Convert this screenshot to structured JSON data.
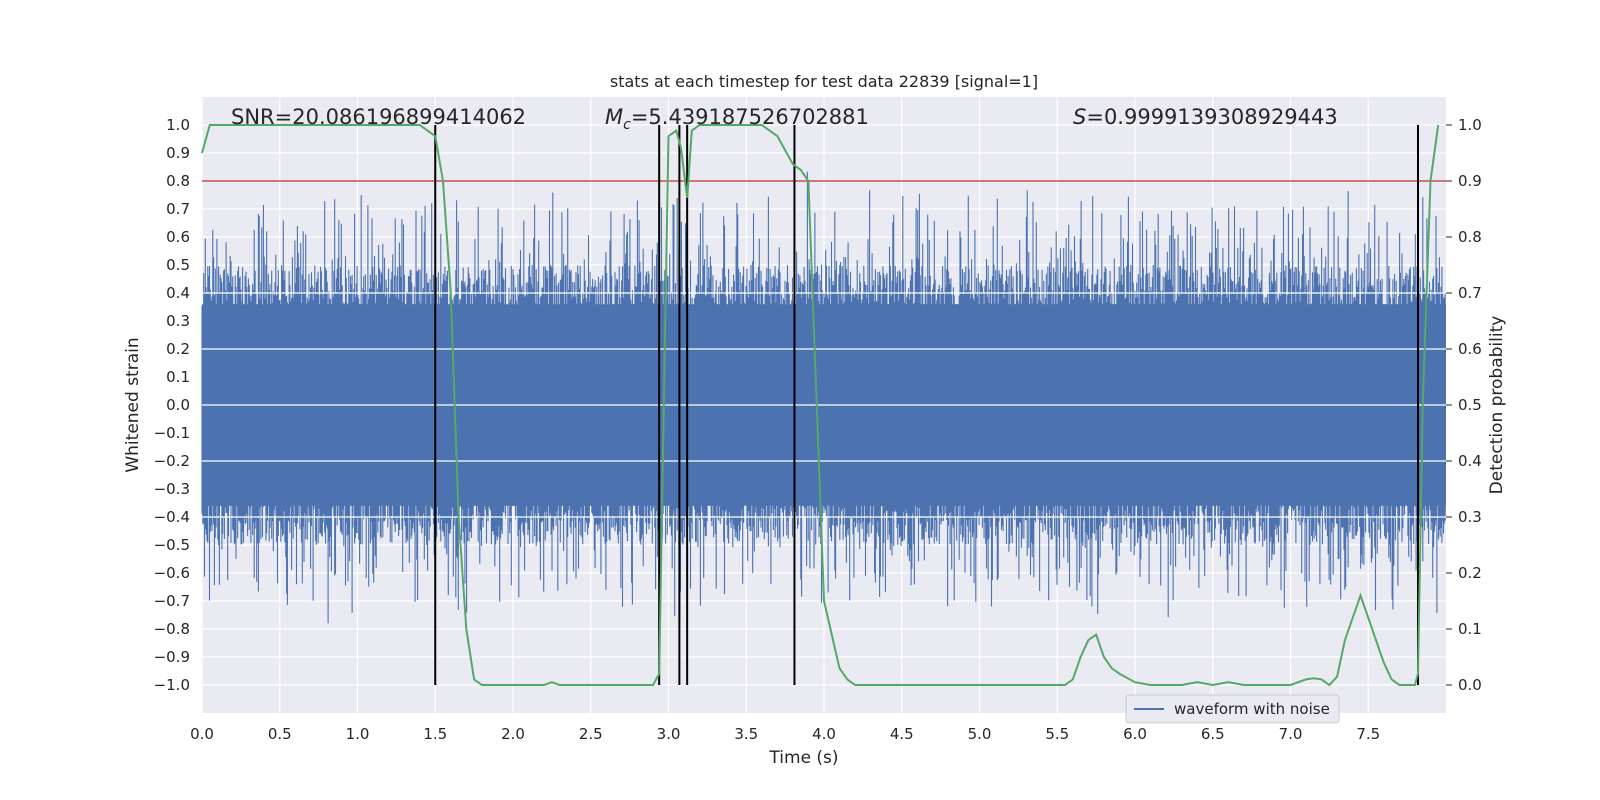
{
  "chart_data": {
    "type": "line",
    "title": "stats at each timestep for test data 22839 [signal=1]",
    "xlabel": "Time (s)",
    "ylabel_left": "Whitened strain",
    "ylabel_right": "Detection probability",
    "xlim": [
      0.0,
      8.0
    ],
    "ylim_left": [
      -1.1,
      1.1
    ],
    "ylim_right": [
      -0.05,
      1.05
    ],
    "x_ticks": [
      "0.0",
      "0.5",
      "1.0",
      "1.5",
      "2.0",
      "2.5",
      "3.0",
      "3.5",
      "4.0",
      "4.5",
      "5.0",
      "5.5",
      "6.0",
      "6.5",
      "7.0",
      "7.5"
    ],
    "y_left_ticks": [
      "1.0",
      "0.9",
      "0.8",
      "0.7",
      "0.6",
      "0.5",
      "0.4",
      "0.3",
      "0.2",
      "0.1",
      "0.0",
      "−0.1",
      "−0.2",
      "−0.3",
      "−0.4",
      "−0.5",
      "−0.6",
      "−0.7",
      "−0.8",
      "−0.9",
      "−1.0"
    ],
    "y_right_ticks": [
      "1.0",
      "0.9",
      "0.8",
      "0.7",
      "0.6",
      "0.5",
      "0.4",
      "0.3",
      "0.2",
      "0.1",
      "0.0"
    ],
    "annotations": {
      "snr": "SNR=20.086196899414062",
      "mc_symbol": "M",
      "mc_subscript": "c",
      "mc_value": "=5.439187526702881",
      "s_symbol": "S",
      "s_value": "=0.9999139308929443"
    },
    "threshold_right": 0.9,
    "threshold_color": "#c44e52",
    "vertical_lines_x": [
      1.5,
      2.94,
      3.07,
      3.12,
      3.81,
      7.82
    ],
    "series": [
      {
        "name": "waveform with noise",
        "axis": "left",
        "color": "#4c72b0",
        "envelope": "band approximately ±0.4 with spikes up to ±1.0"
      },
      {
        "name": "detection probability",
        "axis": "right",
        "color": "#55a868",
        "x": [
          0.0,
          0.05,
          0.1,
          0.2,
          0.3,
          0.4,
          0.5,
          0.6,
          0.7,
          0.8,
          0.9,
          1.0,
          1.1,
          1.2,
          1.3,
          1.4,
          1.45,
          1.5,
          1.55,
          1.6,
          1.65,
          1.7,
          1.75,
          1.8,
          1.9,
          2.0,
          2.1,
          2.2,
          2.25,
          2.3,
          2.4,
          2.5,
          2.6,
          2.7,
          2.8,
          2.9,
          2.94,
          2.97,
          3.0,
          3.05,
          3.08,
          3.12,
          3.15,
          3.2,
          3.3,
          3.4,
          3.5,
          3.6,
          3.7,
          3.8,
          3.85,
          3.9,
          4.0,
          4.1,
          4.15,
          4.2,
          4.3,
          4.4,
          4.5,
          4.6,
          4.7,
          4.8,
          5.0,
          5.2,
          5.4,
          5.5,
          5.55,
          5.6,
          5.65,
          5.7,
          5.75,
          5.8,
          5.85,
          5.9,
          6.0,
          6.1,
          6.2,
          6.3,
          6.4,
          6.5,
          6.6,
          6.7,
          6.8,
          6.9,
          7.0,
          7.1,
          7.15,
          7.2,
          7.25,
          7.3,
          7.35,
          7.4,
          7.45,
          7.5,
          7.55,
          7.6,
          7.65,
          7.7,
          7.75,
          7.8,
          7.82,
          7.85,
          7.9,
          7.95
        ],
        "values": [
          0.95,
          1.0,
          1.0,
          1.0,
          1.0,
          1.0,
          1.0,
          1.0,
          1.0,
          1.0,
          1.0,
          1.0,
          1.0,
          1.0,
          1.0,
          1.0,
          0.99,
          0.98,
          0.9,
          0.7,
          0.3,
          0.1,
          0.01,
          0.0,
          0.0,
          0.0,
          0.0,
          0.0,
          0.005,
          0.0,
          0.0,
          0.0,
          0.0,
          0.0,
          0.0,
          0.0,
          0.02,
          0.5,
          0.98,
          0.99,
          0.96,
          0.87,
          0.99,
          1.0,
          1.0,
          1.0,
          1.0,
          1.0,
          0.98,
          0.93,
          0.92,
          0.9,
          0.15,
          0.03,
          0.01,
          0.0,
          0.0,
          0.0,
          0.0,
          0.0,
          0.0,
          0.0,
          0.0,
          0.0,
          0.0,
          0.0,
          0.0,
          0.01,
          0.05,
          0.08,
          0.09,
          0.05,
          0.03,
          0.02,
          0.005,
          0.0,
          0.0,
          0.0,
          0.005,
          0.0,
          0.005,
          0.0,
          0.0,
          0.0,
          0.0,
          0.01,
          0.012,
          0.01,
          0.0,
          0.015,
          0.08,
          0.12,
          0.16,
          0.12,
          0.08,
          0.04,
          0.01,
          0.0,
          0.0,
          0.0,
          0.02,
          0.5,
          0.9,
          1.0
        ]
      }
    ],
    "legend": {
      "placement": "lower-right",
      "entries": [
        "waveform with noise"
      ]
    },
    "grid": true,
    "background_color": "#eaeaf2",
    "spine_color": "#000000"
  }
}
